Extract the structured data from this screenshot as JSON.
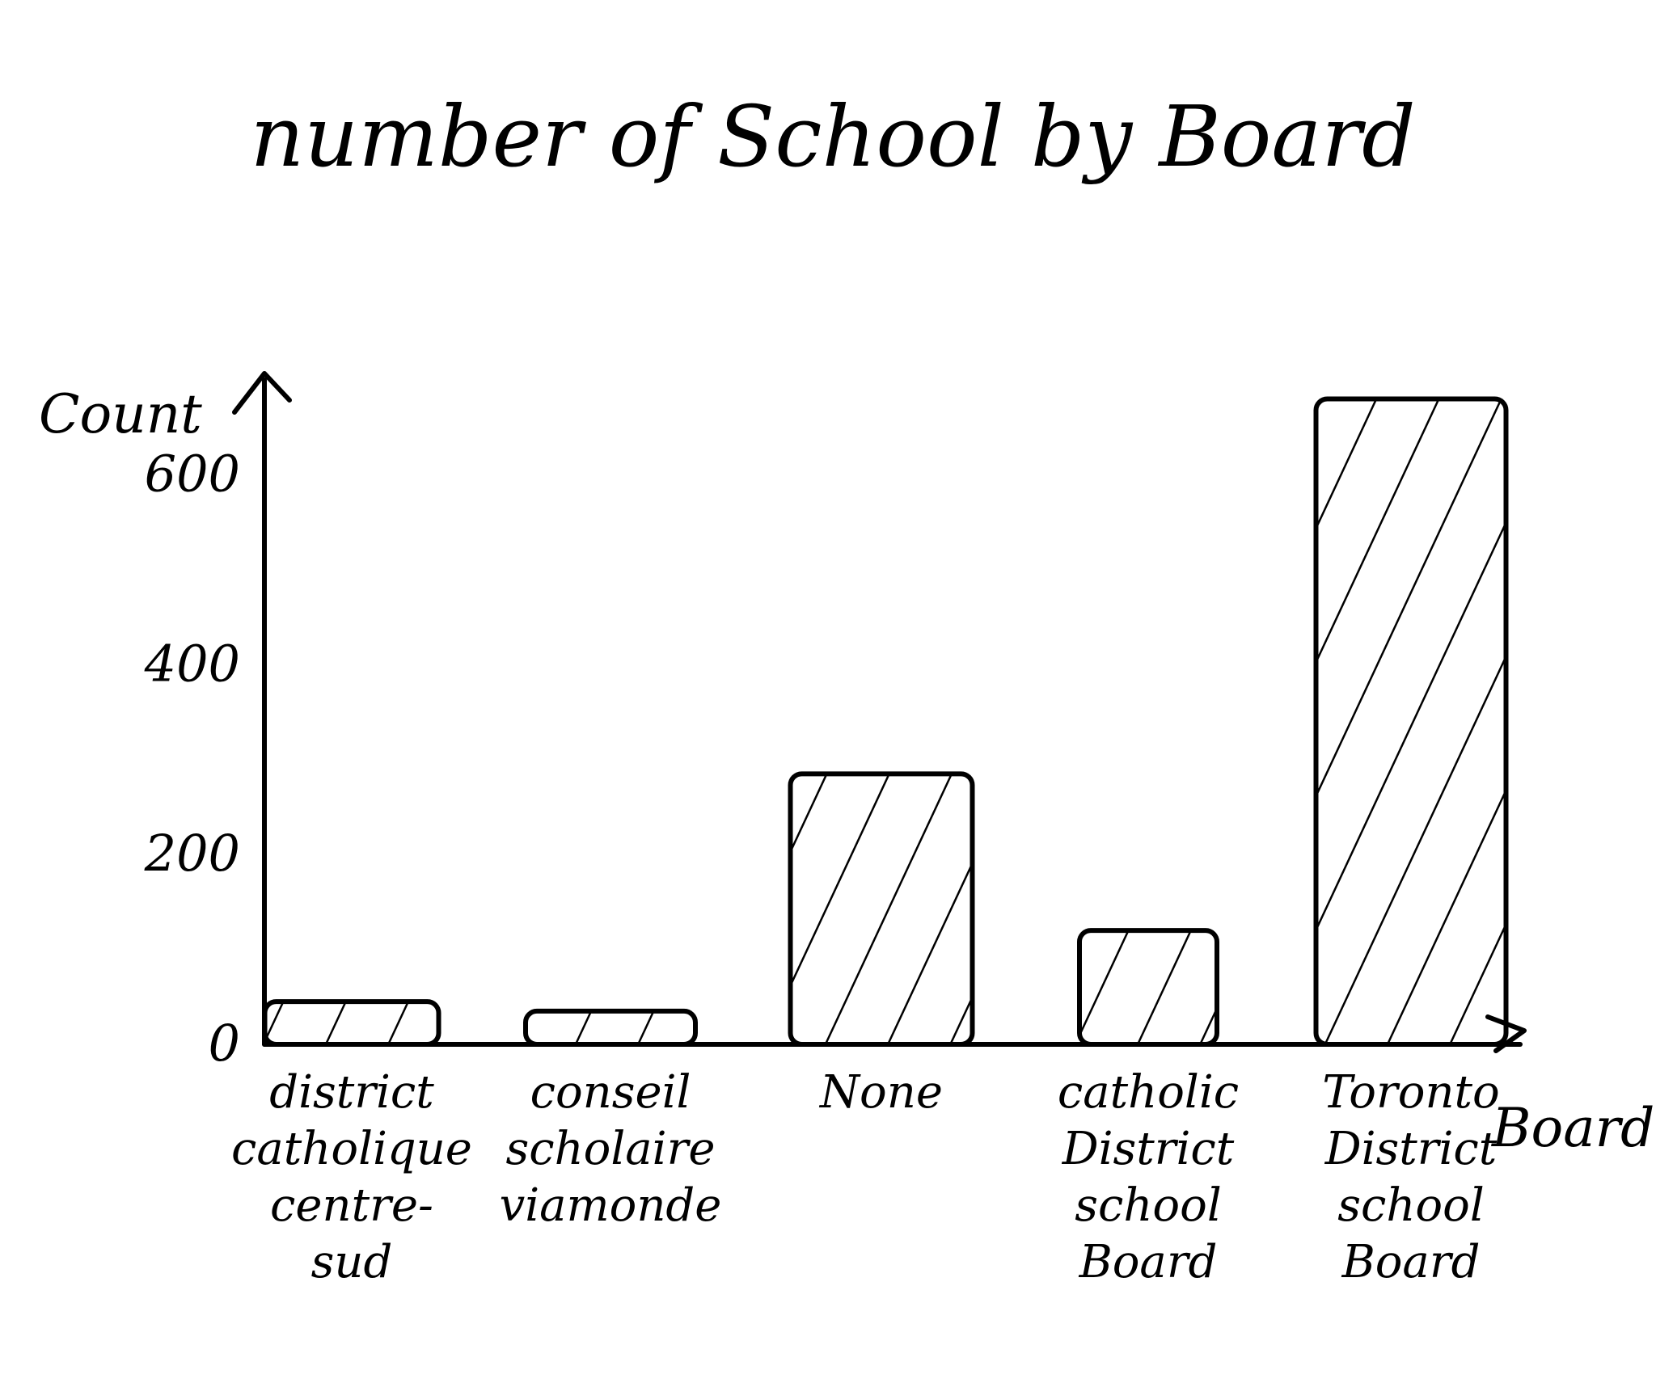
{
  "chart_data": {
    "type": "bar",
    "title": "number of School by Board",
    "xlabel": "Board",
    "ylabel": "Count",
    "ylim": [
      0,
      700
    ],
    "yticks": [
      {
        "value": 0,
        "label": "0"
      },
      {
        "value": 200,
        "label": "200"
      },
      {
        "value": 400,
        "label": "400"
      },
      {
        "value": 600,
        "label": "600"
      }
    ],
    "categories": [
      "district catholique centre-sud",
      "conseil scholaire viamonde",
      "None",
      "catholic District school Board",
      "Toronto District school Board"
    ],
    "category_lines": [
      [
        "district",
        "catholique",
        "centre-",
        "sud"
      ],
      [
        "conseil",
        "scholaire",
        "viamonde"
      ],
      [
        "None"
      ],
      [
        "catholic",
        "District",
        "school",
        "Board"
      ],
      [
        "Toronto",
        "District",
        "school",
        "Board"
      ]
    ],
    "values": [
      45,
      35,
      285,
      120,
      680
    ],
    "grid": false,
    "legend": "none",
    "bar_fill": "hatched",
    "stroke_color": "#000000"
  }
}
